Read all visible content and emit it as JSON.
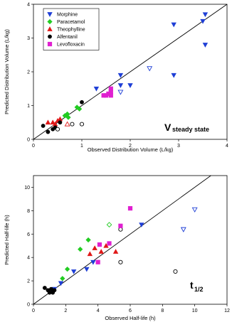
{
  "chart_data": [
    {
      "type": "scatter",
      "xlabel": "Observed Distribution Volume (L/kg)",
      "ylabel": "Predicted Distribution Volume (L/kg)",
      "xlim": [
        0,
        4
      ],
      "ylim": [
        0,
        4
      ],
      "xticks": [
        "0",
        "1",
        "2",
        "3",
        "4"
      ],
      "yticks": [
        "0",
        "1",
        "2",
        "3",
        "4"
      ],
      "annotation": "V",
      "annotation_sub": "steady state",
      "identity_line": true,
      "legend_position": "top-left",
      "series": [
        {
          "name": "Morphine",
          "marker": "triangle-down",
          "color": "#1f3fd6",
          "points": [
            {
              "x": 1.3,
              "y": 1.5,
              "filled": true
            },
            {
              "x": 1.8,
              "y": 1.9,
              "filled": true
            },
            {
              "x": 1.8,
              "y": 1.6,
              "filled": true
            },
            {
              "x": 2.0,
              "y": 1.6,
              "filled": true
            },
            {
              "x": 2.9,
              "y": 1.9,
              "filled": true
            },
            {
              "x": 2.9,
              "y": 3.4,
              "filled": true
            },
            {
              "x": 3.5,
              "y": 3.5,
              "filled": true
            },
            {
              "x": 3.55,
              "y": 3.7,
              "filled": true
            },
            {
              "x": 3.55,
              "y": 2.8,
              "filled": true
            },
            {
              "x": 1.8,
              "y": 1.4,
              "filled": false
            },
            {
              "x": 2.4,
              "y": 2.1,
              "filled": false
            }
          ]
        },
        {
          "name": "Paracetamol",
          "marker": "diamond",
          "color": "#22cc22",
          "points": [
            {
              "x": 0.65,
              "y": 0.7,
              "filled": true
            },
            {
              "x": 0.7,
              "y": 0.75,
              "filled": true
            },
            {
              "x": 0.72,
              "y": 0.65,
              "filled": true
            },
            {
              "x": 0.9,
              "y": 0.95,
              "filled": true
            },
            {
              "x": 0.95,
              "y": 0.9,
              "filled": true
            }
          ]
        },
        {
          "name": "Theophylline",
          "marker": "triangle-up",
          "color": "#e01818",
          "points": [
            {
              "x": 0.3,
              "y": 0.5,
              "filled": true
            },
            {
              "x": 0.4,
              "y": 0.5,
              "filled": true
            },
            {
              "x": 0.45,
              "y": 0.45,
              "filled": true
            },
            {
              "x": 0.5,
              "y": 0.55,
              "filled": true
            },
            {
              "x": 0.55,
              "y": 0.6,
              "filled": true
            },
            {
              "x": 0.7,
              "y": 0.45,
              "filled": false
            }
          ]
        },
        {
          "name": "Alfentanil",
          "marker": "circle",
          "color": "#000000",
          "points": [
            {
              "x": 0.2,
              "y": 0.4,
              "filled": true
            },
            {
              "x": 0.3,
              "y": 0.22,
              "filled": true
            },
            {
              "x": 0.4,
              "y": 0.3,
              "filled": true
            },
            {
              "x": 0.45,
              "y": 0.35,
              "filled": true
            },
            {
              "x": 0.55,
              "y": 0.5,
              "filled": true
            },
            {
              "x": 1.0,
              "y": 1.1,
              "filled": true
            },
            {
              "x": 0.5,
              "y": 0.3,
              "filled": false
            },
            {
              "x": 0.8,
              "y": 0.45,
              "filled": false
            },
            {
              "x": 1.0,
              "y": 0.45,
              "filled": false
            }
          ]
        },
        {
          "name": "Levofloxacin",
          "marker": "square",
          "color": "#e020d0",
          "points": [
            {
              "x": 1.45,
              "y": 1.3,
              "filled": true
            },
            {
              "x": 1.5,
              "y": 1.3,
              "filled": true
            },
            {
              "x": 1.55,
              "y": 1.35,
              "filled": true
            },
            {
              "x": 1.6,
              "y": 1.3,
              "filled": true
            },
            {
              "x": 1.6,
              "y": 1.4,
              "filled": true
            },
            {
              "x": 1.6,
              "y": 1.5,
              "filled": true
            }
          ]
        }
      ]
    },
    {
      "type": "scatter",
      "xlabel": "Observed Half-life (h)",
      "ylabel": "Predicted Half-life (h)",
      "xlim": [
        0,
        12
      ],
      "ylim": [
        0,
        11
      ],
      "xticks": [
        "0",
        "2",
        "4",
        "6",
        "8",
        "10",
        "12"
      ],
      "yticks": [
        "0",
        "2",
        "4",
        "6",
        "8",
        "10"
      ],
      "annotation": "t",
      "annotation_sub": "1/2",
      "identity_line": true,
      "legend_position": "none",
      "series": [
        {
          "name": "Morphine",
          "marker": "triangle-down",
          "color": "#1f3fd6",
          "points": [
            {
              "x": 1.2,
              "y": 1.1,
              "filled": true
            },
            {
              "x": 1.3,
              "y": 1.3,
              "filled": true
            },
            {
              "x": 1.7,
              "y": 1.8,
              "filled": true
            },
            {
              "x": 2.5,
              "y": 2.8,
              "filled": true
            },
            {
              "x": 3.3,
              "y": 3.0,
              "filled": true
            },
            {
              "x": 3.7,
              "y": 3.6,
              "filled": true
            },
            {
              "x": 6.7,
              "y": 6.8,
              "filled": true
            },
            {
              "x": 9.3,
              "y": 6.4,
              "filled": false
            },
            {
              "x": 10.0,
              "y": 8.1,
              "filled": false
            }
          ]
        },
        {
          "name": "Paracetamol",
          "marker": "diamond",
          "color": "#22cc22",
          "points": [
            {
              "x": 1.8,
              "y": 2.2,
              "filled": true
            },
            {
              "x": 2.1,
              "y": 3.0,
              "filled": true
            },
            {
              "x": 2.9,
              "y": 4.7,
              "filled": true
            },
            {
              "x": 3.4,
              "y": 5.5,
              "filled": true
            },
            {
              "x": 4.7,
              "y": 6.8,
              "filled": false
            }
          ]
        },
        {
          "name": "Theophylline",
          "marker": "triangle-up",
          "color": "#e01818",
          "points": [
            {
              "x": 3.5,
              "y": 4.3,
              "filled": true
            },
            {
              "x": 3.8,
              "y": 4.8,
              "filled": true
            },
            {
              "x": 4.2,
              "y": 4.5,
              "filled": true
            },
            {
              "x": 4.5,
              "y": 5.0,
              "filled": true
            },
            {
              "x": 5.1,
              "y": 4.5,
              "filled": true
            }
          ]
        },
        {
          "name": "Alfentanil",
          "marker": "circle",
          "color": "#000000",
          "points": [
            {
              "x": 0.7,
              "y": 1.4,
              "filled": true
            },
            {
              "x": 0.9,
              "y": 1.2,
              "filled": true
            },
            {
              "x": 1.0,
              "y": 1.0,
              "filled": true
            },
            {
              "x": 1.1,
              "y": 1.3,
              "filled": true
            },
            {
              "x": 1.2,
              "y": 1.0,
              "filled": true
            },
            {
              "x": 1.3,
              "y": 1.2,
              "filled": true
            },
            {
              "x": 5.4,
              "y": 6.4,
              "filled": false
            },
            {
              "x": 5.4,
              "y": 3.6,
              "filled": false
            },
            {
              "x": 8.8,
              "y": 2.8,
              "filled": false
            }
          ]
        },
        {
          "name": "Levofloxacin",
          "marker": "square",
          "color": "#e020d0",
          "points": [
            {
              "x": 4.0,
              "y": 3.6,
              "filled": true
            },
            {
              "x": 4.1,
              "y": 5.1,
              "filled": true
            },
            {
              "x": 4.7,
              "y": 5.2,
              "filled": true
            },
            {
              "x": 5.4,
              "y": 6.7,
              "filled": true
            },
            {
              "x": 6.0,
              "y": 8.2,
              "filled": true
            }
          ]
        }
      ]
    }
  ]
}
